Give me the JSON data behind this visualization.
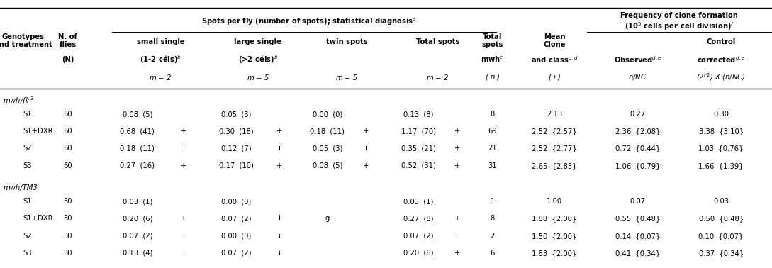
{
  "fig_width": 10.89,
  "fig_height": 3.78,
  "bg_color": "#ffffff",
  "fs_bold": 7.2,
  "fs_data": 7.2,
  "fs_group": 7.2,
  "group1_label": "mwh/flr$^3$",
  "group2_label": "mwh/TM3",
  "rows_group1": [
    [
      "S1",
      "60",
      "0.08  (5)",
      "",
      "0.05  (3)",
      "",
      "0.00  (0)",
      "",
      "0.13  (8)",
      "",
      "8",
      "2.13",
      "0.27",
      "0.30"
    ],
    [
      "S1+DXR",
      "60",
      "0.68  (41)",
      "+",
      "0.30  (18)",
      "+",
      "0.18  (11)",
      "+",
      "1.17  (70)",
      "+",
      "69",
      "2.52  {2.57}",
      "2.36  {2.08}",
      "3.38  {3.10}"
    ],
    [
      "S2",
      "60",
      "0.18  (11)",
      "i",
      "0.12  (7)",
      "i",
      "0.05  (3)",
      "i",
      "0.35  (21)",
      "+",
      "21",
      "2.52  {2.77}",
      "0.72  {0.44}",
      "1.03  {0.76}"
    ],
    [
      "S3",
      "60",
      "0.27  (16)",
      "+",
      "0.17  (10)",
      "+",
      "0.08  (5)",
      "+",
      "0.52  (31)",
      "+",
      "31",
      "2.65  {2.83}",
      "1.06  {0.79}",
      "1.66  {1.39}"
    ]
  ],
  "rows_group2": [
    [
      "S1",
      "30",
      "0.03  (1)",
      "",
      "0.00  (0)",
      "",
      "",
      "",
      "0.03  (1)",
      "",
      "1",
      "1.00",
      "0.07",
      "0.03"
    ],
    [
      "S1+DXR",
      "30",
      "0.20  (6)",
      "+",
      "0.07  (2)",
      "i",
      "g",
      "",
      "0.27  (8)",
      "+",
      "8",
      "1.88  {2.00}",
      "0.55  {0.48}",
      "0.50  {0.48}"
    ],
    [
      "S2",
      "30",
      "0.07  (2)",
      "i",
      "0.00  (0)",
      "i",
      "",
      "",
      "0.07  (2)",
      "i",
      "2",
      "1.50  {2.00}",
      "0.14  {0.07}",
      "0.10  {0.07}"
    ],
    [
      "S3",
      "30",
      "0.13  (4)",
      "i",
      "0.07  (2)",
      "i",
      "",
      "",
      "0.20  (6)",
      "+",
      "6",
      "1.83  {2.00}",
      "0.41  {0.34}",
      "0.37  {0.34}"
    ]
  ]
}
